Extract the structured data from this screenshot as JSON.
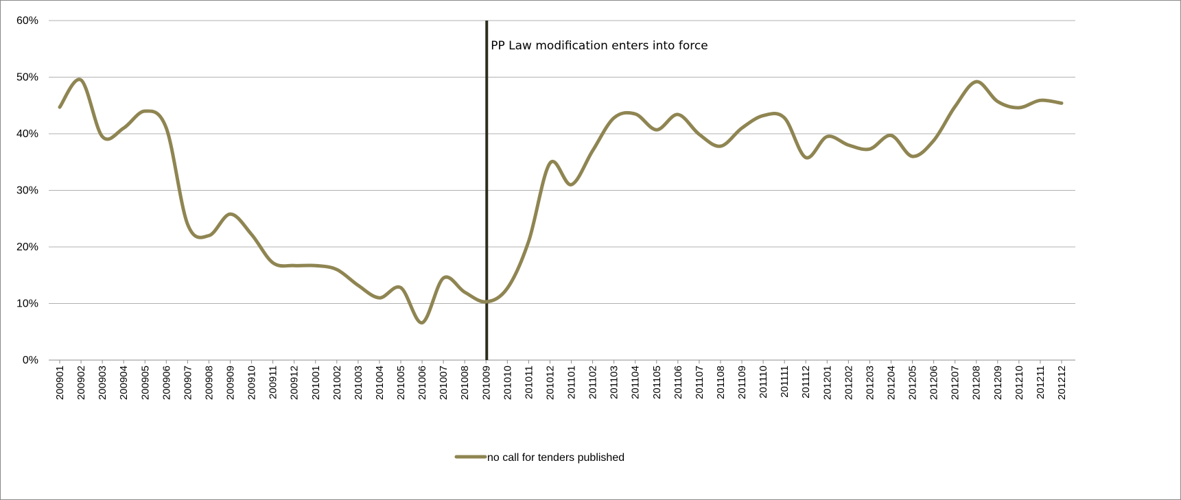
{
  "chart_data": {
    "type": "line",
    "title": "",
    "xlabel": "",
    "ylabel": "",
    "ylim": [
      0,
      0.6
    ],
    "y_ticks": [
      "0%",
      "10%",
      "20%",
      "30%",
      "40%",
      "50%",
      "60%"
    ],
    "y_tick_values": [
      0,
      0.1,
      0.2,
      0.3,
      0.4,
      0.5,
      0.6
    ],
    "grid": "horizontal",
    "legend_position": "bottom",
    "categories": [
      "200901",
      "200902",
      "200903",
      "200904",
      "200905",
      "200906",
      "200907",
      "200908",
      "200909",
      "200910",
      "200911",
      "200912",
      "201001",
      "201002",
      "201003",
      "201004",
      "201005",
      "201006",
      "201007",
      "201008",
      "201009",
      "201010",
      "201011",
      "201012",
      "201101",
      "201102",
      "201103",
      "201104",
      "201105",
      "201106",
      "201107",
      "201108",
      "201109",
      "201110",
      "201111",
      "201112",
      "201201",
      "201202",
      "201203",
      "201204",
      "201205",
      "201206",
      "201207",
      "201208",
      "201209",
      "201210",
      "201211",
      "201212"
    ],
    "series": [
      {
        "name": "no call for tenders published",
        "color": "#8f8552",
        "values": [
          0.447,
          0.495,
          0.395,
          0.41,
          0.44,
          0.41,
          0.24,
          0.22,
          0.258,
          0.222,
          0.172,
          0.167,
          0.167,
          0.16,
          0.132,
          0.11,
          0.128,
          0.066,
          0.145,
          0.12,
          0.103,
          0.127,
          0.21,
          0.348,
          0.31,
          0.37,
          0.428,
          0.435,
          0.407,
          0.434,
          0.399,
          0.378,
          0.41,
          0.432,
          0.428,
          0.358,
          0.395,
          0.38,
          0.373,
          0.397,
          0.36,
          0.388,
          0.448,
          0.492,
          0.457,
          0.446,
          0.459,
          0.454
        ]
      }
    ],
    "annotations": [
      {
        "category": "201009",
        "text": "PP Law modification enters into force",
        "line_color": "#2e2d1c"
      }
    ]
  }
}
